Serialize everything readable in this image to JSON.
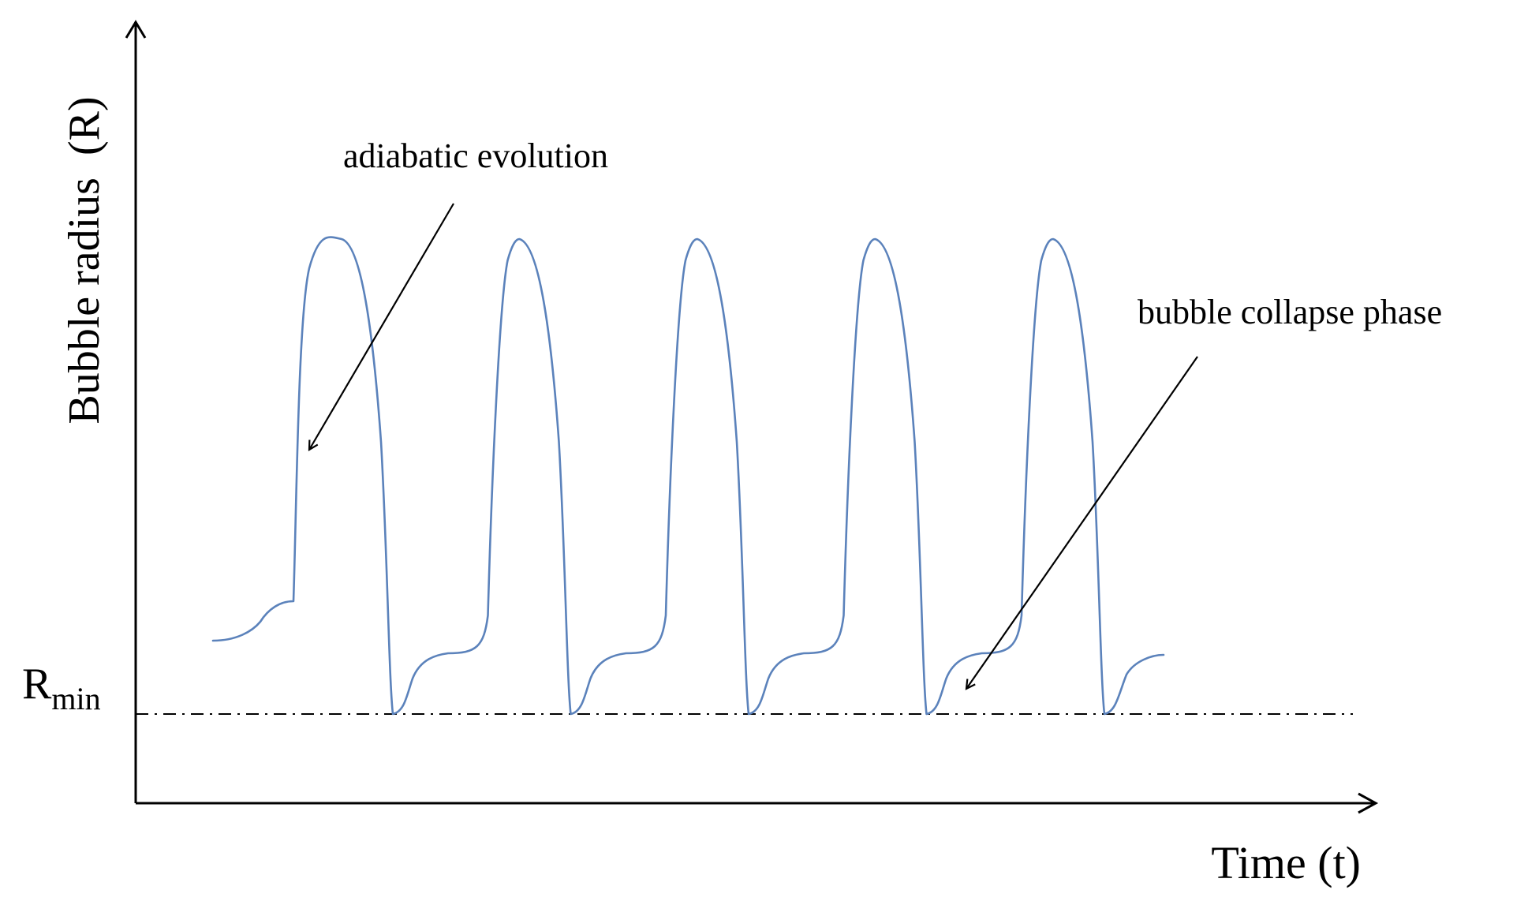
{
  "y_axis_label": "Bubble radius  (R)",
  "x_axis_label": "Time (t)",
  "rmin_label": {
    "main": "R",
    "sub": "min"
  },
  "annotations": {
    "adiabatic": "adiabatic evolution",
    "collapse": "bubble collapse phase"
  },
  "colors": {
    "curve": "#5b82bb",
    "axis": "#000000"
  },
  "cycles": 5
}
